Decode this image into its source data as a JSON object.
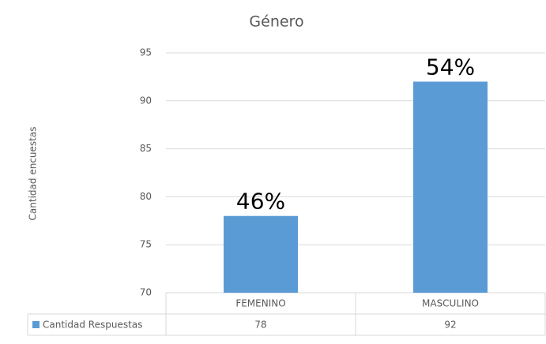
{
  "chart_data": {
    "type": "bar",
    "title": "Género",
    "y_label": "Cantidad encuestas",
    "categories": [
      "FEMENINO",
      "MASCULINO"
    ],
    "series": [
      {
        "name": "Cantidad Respuestas",
        "color": "#5b9bd5",
        "values": [
          78,
          92
        ]
      }
    ],
    "data_labels": [
      "46%",
      "54%"
    ],
    "ylim": [
      70,
      95
    ],
    "yticks": [
      70,
      75,
      80,
      85,
      90,
      95
    ],
    "grid": true,
    "legend": "table"
  }
}
